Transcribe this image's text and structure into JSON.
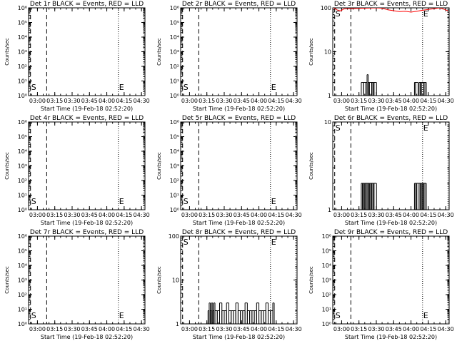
{
  "figure": {
    "xlabel": "Start Time (19-Feb-18 02:52:20)",
    "ylabel": "Counts/sec",
    "x_ticks": [
      "03:00",
      "03:15",
      "03:30",
      "03:45",
      "04:00",
      "04:15",
      "04:30"
    ],
    "marker_s": "S",
    "marker_e": "E",
    "colors": {
      "events": "#000000",
      "lld": "#ff0000",
      "axes": "#000000",
      "background": "#ffffff"
    }
  },
  "chart_data": [
    {
      "type": "line",
      "title": "Det 1r BLACK = Events, RED = LLD",
      "y_scale": "log",
      "xlim": [
        "02:52:20",
        "04:33:00"
      ],
      "ylim": [
        1,
        1000000
      ],
      "y_ticks": [
        "10⁰",
        "10¹",
        "10²",
        "10³",
        "10⁴",
        "10⁵",
        "10⁶"
      ],
      "series": [],
      "markers": {
        "S": "02:54",
        "E": "04:10"
      }
    },
    {
      "type": "line",
      "title": "Det 2r BLACK = Events, RED = LLD",
      "y_scale": "log",
      "xlim": [
        "02:52:20",
        "04:33:00"
      ],
      "ylim": [
        1,
        1000000
      ],
      "y_ticks": [
        "10⁰",
        "10¹",
        "10²",
        "10³",
        "10⁴",
        "10⁵",
        "10⁶"
      ],
      "series": [],
      "markers": {
        "S": "02:54",
        "E": "04:10"
      }
    },
    {
      "type": "line",
      "title": "Det 3r BLACK = Events, RED = LLD",
      "y_scale": "log",
      "xlim": [
        "02:52:20",
        "04:33:00"
      ],
      "ylim": [
        1,
        100
      ],
      "y_ticks": [
        "1",
        "10",
        "100"
      ],
      "series": [
        {
          "color": "#000000",
          "x": [
            "03:17",
            "03:19",
            "03:21",
            "03:22",
            "03:23",
            "03:24",
            "03:26",
            "03:27",
            "03:28",
            "04:03",
            "04:04",
            "04:07",
            "04:08",
            "04:09",
            "04:11",
            "04:12"
          ],
          "values": [
            2,
            2,
            2,
            3,
            2,
            2,
            2,
            2,
            2,
            2,
            2,
            2,
            2,
            2,
            2,
            2
          ]
        },
        {
          "color": "#ff0000",
          "x": [
            "02:53",
            "02:56",
            "02:59",
            "03:02",
            "03:30",
            "03:35",
            "03:40",
            "03:45",
            "03:50",
            "03:55",
            "04:00",
            "04:05",
            "04:10",
            "04:15",
            "04:20",
            "04:25",
            "04:30",
            "04:32"
          ],
          "values": [
            100,
            90,
            85,
            95,
            100,
            98,
            90,
            86,
            82,
            84,
            80,
            84,
            88,
            92,
            96,
            100,
            90,
            85
          ]
        }
      ],
      "markers": {
        "S": "02:54",
        "E": "04:10"
      }
    },
    {
      "type": "line",
      "title": "Det 4r BLACK = Events, RED = LLD",
      "y_scale": "log",
      "xlim": [
        "02:52:20",
        "04:33:00"
      ],
      "ylim": [
        1,
        1000000
      ],
      "y_ticks": [
        "10⁰",
        "10¹",
        "10²",
        "10³",
        "10⁴",
        "10⁵",
        "10⁶"
      ],
      "series": [],
      "markers": {
        "S": "02:54",
        "E": "04:10"
      }
    },
    {
      "type": "line",
      "title": "Det 5r BLACK = Events, RED = LLD",
      "y_scale": "log",
      "xlim": [
        "02:52:20",
        "04:33:00"
      ],
      "ylim": [
        1,
        1000000
      ],
      "y_ticks": [
        "10⁰",
        "10¹",
        "10²",
        "10³",
        "10⁴",
        "10⁵",
        "10⁶"
      ],
      "series": [],
      "markers": {
        "S": "02:54",
        "E": "04:10"
      }
    },
    {
      "type": "line",
      "title": "Det 6r BLACK = Events, RED = LLD",
      "y_scale": "log",
      "xlim": [
        "02:52:20",
        "04:33:00"
      ],
      "ylim": [
        1,
        10
      ],
      "y_ticks": [
        "1",
        "10"
      ],
      "series": [
        {
          "color": "#000000",
          "x": [
            "03:17",
            "03:18",
            "03:19",
            "03:20",
            "03:21",
            "03:22",
            "03:23",
            "03:24",
            "03:25",
            "03:26",
            "03:27",
            "03:28",
            "04:03",
            "04:04",
            "04:05",
            "04:07",
            "04:08",
            "04:09",
            "04:10",
            "04:11",
            "04:12"
          ],
          "values": [
            2,
            2,
            2,
            2,
            2,
            2,
            2,
            2,
            2,
            2,
            2,
            2,
            2,
            2,
            2,
            2,
            2,
            2,
            2,
            2,
            2
          ]
        }
      ],
      "markers": {
        "S": "02:54",
        "E": "04:10"
      }
    },
    {
      "type": "line",
      "title": "Det 7r BLACK = Events, RED = LLD",
      "y_scale": "log",
      "xlim": [
        "02:52:20",
        "04:33:00"
      ],
      "ylim": [
        1,
        1000000
      ],
      "y_ticks": [
        "10⁰",
        "10¹",
        "10²",
        "10³",
        "10⁴",
        "10⁵",
        "10⁶"
      ],
      "series": [],
      "markers": {
        "S": "02:54",
        "E": "04:10"
      }
    },
    {
      "type": "line",
      "title": "Det 8r BLACK = Events, RED = LLD",
      "y_scale": "log",
      "xlim": [
        "02:52:20",
        "04:33:00"
      ],
      "ylim": [
        1,
        100
      ],
      "y_ticks": [
        "1",
        "10",
        "100"
      ],
      "series": [
        {
          "color": "#000000",
          "x": [
            "03:16",
            "03:17",
            "03:18",
            "03:19",
            "03:20",
            "03:21",
            "03:22",
            "03:24",
            "03:26",
            "03:28",
            "03:30",
            "03:32",
            "03:34",
            "03:36",
            "03:38",
            "03:40",
            "03:42",
            "03:44",
            "03:46",
            "03:48",
            "03:50",
            "03:52",
            "03:54",
            "03:56",
            "03:58",
            "04:00",
            "04:02",
            "04:04",
            "04:06",
            "04:08",
            "04:10",
            "04:12"
          ],
          "values": [
            2,
            3,
            2,
            3,
            2,
            3,
            2,
            2,
            3,
            2,
            2,
            3,
            2,
            2,
            2,
            3,
            2,
            2,
            2,
            3,
            2,
            2,
            2,
            2,
            3,
            2,
            2,
            2,
            3,
            2,
            2,
            3
          ]
        }
      ],
      "markers": {
        "S": "02:54",
        "E": "04:10"
      }
    },
    {
      "type": "line",
      "title": "Det 9r BLACK = Events, RED = LLD",
      "y_scale": "log",
      "xlim": [
        "02:52:20",
        "04:33:00"
      ],
      "ylim": [
        1,
        1000000
      ],
      "y_ticks": [
        "10⁰",
        "10¹",
        "10²",
        "10³",
        "10⁴",
        "10⁵",
        "10⁶"
      ],
      "series": [],
      "markers": {
        "S": "02:54",
        "E": "04:10"
      }
    }
  ]
}
